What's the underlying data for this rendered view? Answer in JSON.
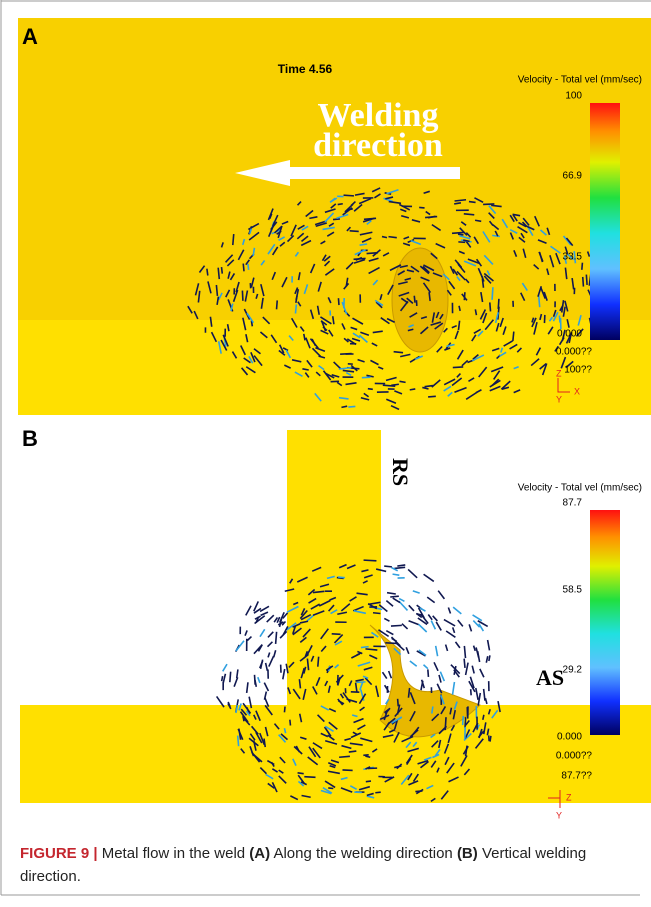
{
  "panel_a": {
    "label": "A",
    "time": "Time 4.56",
    "legend_title": "Velocity - Total vel (mm/sec)",
    "scale": [
      "100",
      "66.9",
      "33.5",
      "0.000"
    ],
    "min_note": "0.000??",
    "max_note": "100??",
    "arrow_text": [
      "Welding",
      "direction"
    ],
    "axes": [
      "Z",
      "X",
      "Y"
    ]
  },
  "panel_b": {
    "label": "B",
    "rs": "RS",
    "as": "AS",
    "legend_title": "Velocity - Total vel (mm/sec)",
    "scale": [
      "87.7",
      "58.5",
      "29.2",
      "0.000"
    ],
    "min_note": "0.000??",
    "max_note": "87.7??",
    "axes": [
      "Z",
      "Y"
    ]
  },
  "caption": {
    "figure": "FIGURE 9 |",
    "text1": "Metal flow in the weld",
    "ref_a": "(A)",
    "text2": "Along the welding direction",
    "ref_b": "(B)",
    "text3": "Vertical welding direction."
  }
}
